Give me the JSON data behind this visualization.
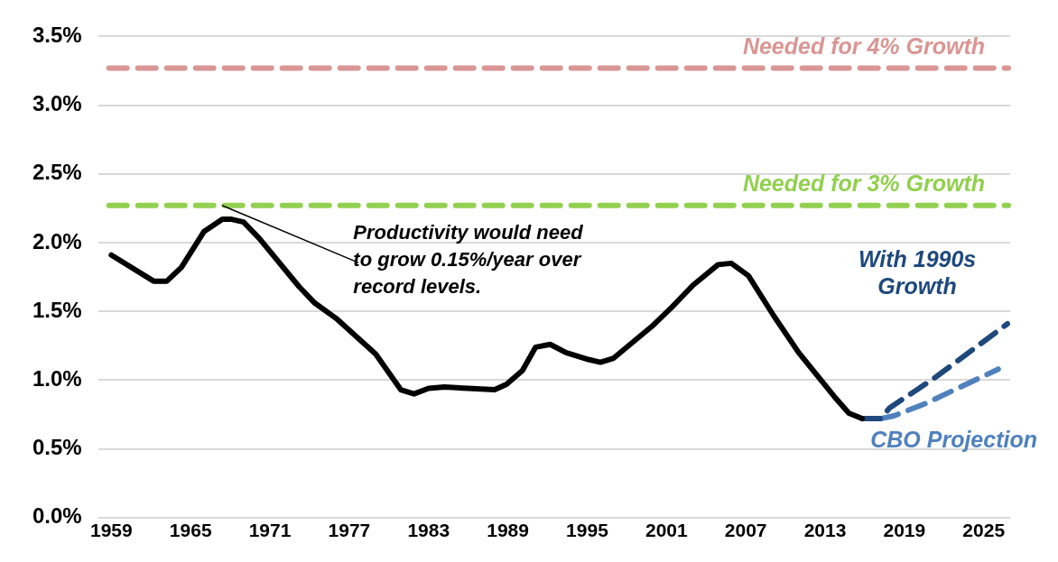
{
  "chart_data": {
    "type": "line",
    "xlim": [
      1958,
      2027
    ],
    "xticks": [
      1959,
      1965,
      1971,
      1977,
      1983,
      1989,
      1995,
      2001,
      2007,
      2013,
      2019,
      2025
    ],
    "ylim": [
      0,
      3.5
    ],
    "yticks": [
      {
        "value": 0,
        "label": "0.0%"
      },
      {
        "value": 0.5,
        "label": "0.5%"
      },
      {
        "value": 1,
        "label": "1.0%"
      },
      {
        "value": 1.5,
        "label": "1.5%"
      },
      {
        "value": 2,
        "label": "2.0%"
      },
      {
        "value": 2.5,
        "label": "2.5%"
      },
      {
        "value": 3,
        "label": "3.0%"
      },
      {
        "value": 3.5,
        "label": "3.5%"
      }
    ],
    "grid": "y",
    "legend": false,
    "marker": "none",
    "series": [
      {
        "color": "#000000",
        "line_style": "solid",
        "x": [
          1959,
          1962.2,
          1963.2,
          1964.3,
          1966,
          1967.4,
          1968.1,
          1969,
          1970.2,
          1973.2,
          1974.4,
          1976,
          1979,
          1980.9,
          1981.9,
          1983,
          1984.2,
          1986,
          1988,
          1988.9,
          1990.1,
          1991.1,
          1992.2,
          1993.4,
          1995.1,
          1996,
          1997,
          2000,
          2001.4,
          2003,
          2004.9,
          2005.9,
          2007.2,
          2009.1,
          2011,
          2013.7,
          2014.8,
          2015.8
        ],
        "values": [
          1.91,
          1.72,
          1.72,
          1.82,
          2.08,
          2.17,
          2.17,
          2.15,
          2.03,
          1.68,
          1.56,
          1.45,
          1.19,
          0.93,
          0.9,
          0.94,
          0.95,
          0.94,
          0.93,
          0.97,
          1.07,
          1.24,
          1.26,
          1.2,
          1.15,
          1.13,
          1.16,
          1.4,
          1.53,
          1.69,
          1.84,
          1.85,
          1.76,
          1.47,
          1.2,
          0.88,
          0.76,
          0.72
        ]
      },
      {
        "name": "With 1990s Growth",
        "color": "#1f497d",
        "line_style": "dashed",
        "x": [
          2015.8,
          2017.2,
          2017.9,
          2021.2,
          2026.8
        ],
        "values": [
          0.72,
          0.72,
          0.8,
          1.01,
          1.41
        ]
      },
      {
        "name": "CBO Projection",
        "color": "#4f81bd",
        "line_style": "dashed",
        "x": [
          2017.2,
          2018.2,
          2020.6,
          2026.1
        ],
        "values": [
          0.72,
          0.74,
          0.83,
          1.08
        ]
      }
    ],
    "ref_lines": [
      {
        "axis": "y",
        "value": 3.27,
        "label": "Needed for 4% Growth",
        "color": "#d99694",
        "line_style": "dashed"
      },
      {
        "axis": "y",
        "value": 2.27,
        "label": "Needed for 3% Growth",
        "color": "#92d050",
        "line_style": "dashed"
      }
    ],
    "annotations": [
      {
        "text": "Productivity would need to grow 0.15%/year over record levels.",
        "x": 1967.4,
        "y": 2.27
      }
    ]
  }
}
